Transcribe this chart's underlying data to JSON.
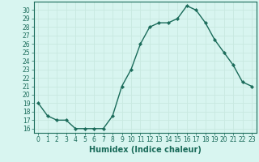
{
  "x": [
    0,
    1,
    2,
    3,
    4,
    5,
    6,
    7,
    8,
    9,
    10,
    11,
    12,
    13,
    14,
    15,
    16,
    17,
    18,
    19,
    20,
    21,
    22,
    23
  ],
  "y": [
    19,
    17.5,
    17,
    17,
    16,
    16,
    16,
    16,
    17.5,
    21,
    23,
    26,
    28,
    28.5,
    28.5,
    29,
    30.5,
    30,
    28.5,
    26.5,
    25,
    23.5,
    21.5,
    21
  ],
  "line_color": "#1a6b5a",
  "marker_color": "#1a6b5a",
  "bg_color": "#d8f5f0",
  "grid_color": "#c8e8e0",
  "xlabel": "Humidex (Indice chaleur)",
  "xlim": [
    -0.5,
    23.5
  ],
  "ylim": [
    15.5,
    31
  ],
  "yticks": [
    16,
    17,
    18,
    19,
    20,
    21,
    22,
    23,
    24,
    25,
    26,
    27,
    28,
    29,
    30
  ],
  "xticks": [
    0,
    1,
    2,
    3,
    4,
    5,
    6,
    7,
    8,
    9,
    10,
    11,
    12,
    13,
    14,
    15,
    16,
    17,
    18,
    19,
    20,
    21,
    22,
    23
  ],
  "tick_label_fontsize": 5.5,
  "xlabel_fontsize": 7,
  "line_width": 1.0,
  "marker_size": 2.2
}
